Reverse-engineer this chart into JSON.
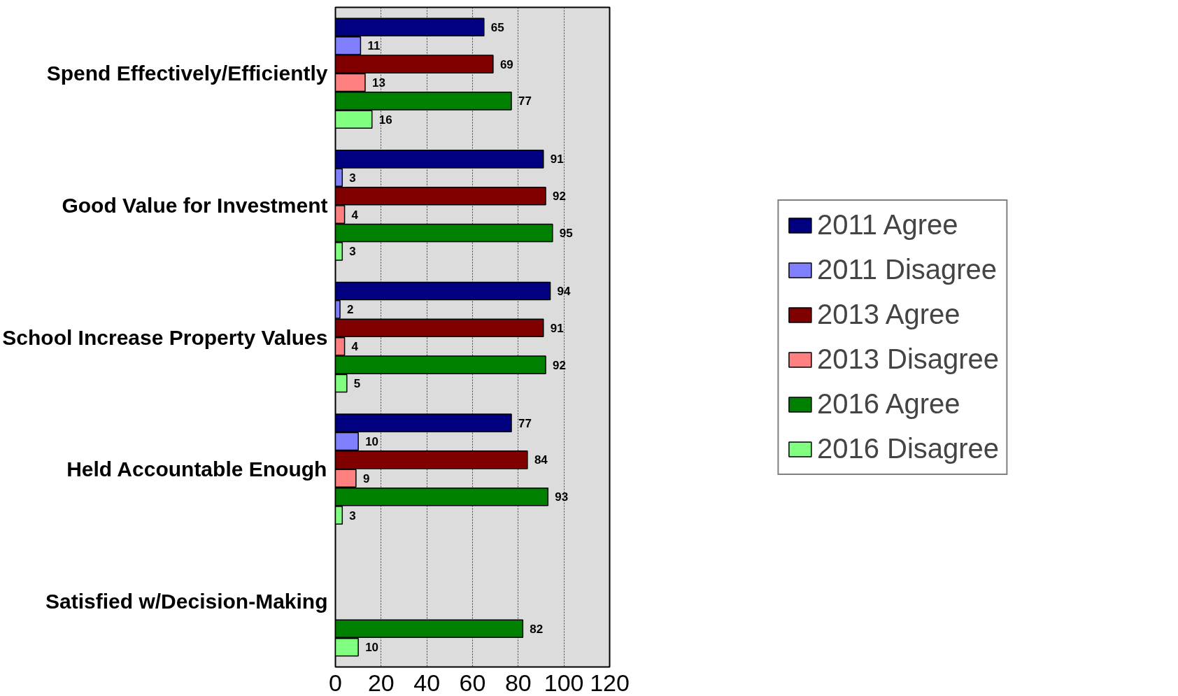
{
  "chart_data": {
    "type": "bar",
    "orientation": "horizontal",
    "categories": [
      "Spend Effectively/Efficiently",
      "Good Value for Investment",
      "School Increase Property Values",
      "Held Accountable Enough",
      "Satisfied w/Decision-Making"
    ],
    "series": [
      {
        "name": "2011 Agree",
        "color": "#000080",
        "values": [
          65,
          91,
          94,
          77,
          null
        ]
      },
      {
        "name": "2011 Disagree",
        "color": "#8080ff",
        "values": [
          11,
          3,
          2,
          10,
          null
        ]
      },
      {
        "name": "2013 Agree",
        "color": "#800000",
        "values": [
          69,
          92,
          91,
          84,
          null
        ]
      },
      {
        "name": "2013 Disagree",
        "color": "#ff8080",
        "values": [
          13,
          4,
          4,
          9,
          null
        ]
      },
      {
        "name": "2016 Agree",
        "color": "#008000",
        "values": [
          77,
          95,
          92,
          93,
          82
        ]
      },
      {
        "name": "2016 Disagree",
        "color": "#80ff80",
        "values": [
          16,
          3,
          5,
          3,
          10
        ]
      }
    ],
    "xlim": [
      0,
      120
    ],
    "xticks": [
      0,
      20,
      40,
      60,
      80,
      100,
      120
    ],
    "grid": "x",
    "legend": "right",
    "data_labels": true
  }
}
